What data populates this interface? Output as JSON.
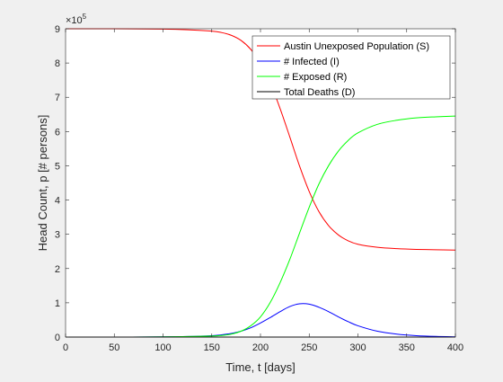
{
  "chart_data": {
    "type": "line",
    "xlabel": "Time, t [days]",
    "ylabel": "Head Count, p [# persons]",
    "exponent_label": "×10",
    "exponent_power": "5",
    "xlim": [
      0,
      400
    ],
    "ylim": [
      0,
      900000
    ],
    "xticks": [
      0,
      50,
      100,
      150,
      200,
      250,
      300,
      350,
      400
    ],
    "xtick_labels": [
      "0",
      "50",
      "100",
      "150",
      "200",
      "250",
      "300",
      "350",
      "400"
    ],
    "yticks": [
      0,
      100000,
      200000,
      300000,
      400000,
      500000,
      600000,
      700000,
      800000,
      900000
    ],
    "ytick_labels": [
      "0",
      "1",
      "2",
      "3",
      "4",
      "5",
      "6",
      "7",
      "8",
      "9"
    ],
    "grid": false,
    "legend_position": "top-right",
    "x": [
      0,
      50,
      100,
      125,
      150,
      160,
      170,
      180,
      190,
      200,
      210,
      220,
      230,
      240,
      250,
      260,
      270,
      280,
      290,
      300,
      320,
      340,
      360,
      380,
      400
    ],
    "series": [
      {
        "name": "Austin Unexposed Population (S)",
        "color": "#ff0000",
        "values": [
          900000,
          900000,
          899000,
          897000,
          893000,
          889000,
          881000,
          866000,
          840000,
          800000,
          742000,
          668000,
          585000,
          500000,
          425000,
          366000,
          325000,
          298000,
          281000,
          271000,
          262000,
          258000,
          256000,
          255000,
          254000
        ]
      },
      {
        "name": "# Infected (I)",
        "color": "#0000ff",
        "values": [
          0,
          0,
          500,
          1500,
          4000,
          6500,
          10500,
          17000,
          27000,
          41000,
          57000,
          74000,
          89000,
          97000,
          96000,
          87000,
          74000,
          59000,
          45000,
          33000,
          17000,
          8500,
          4000,
          1800,
          800
        ]
      },
      {
        "name": "# Exposed (R)",
        "color": "#00ff00",
        "values": [
          0,
          0,
          500,
          1500,
          3000,
          4500,
          8500,
          17000,
          33000,
          59000,
          101000,
          158000,
          226000,
          303000,
          379000,
          447000,
          501000,
          543000,
          574000,
          596000,
          621000,
          633000,
          640000,
          643000,
          645000
        ]
      },
      {
        "name": "Total Deaths (D)",
        "color": "#000000",
        "values": [
          0,
          0,
          0,
          0,
          0,
          0,
          0,
          0,
          0,
          0,
          0,
          0,
          0,
          0,
          0,
          0,
          0,
          0,
          0,
          0,
          0,
          0,
          0,
          0,
          0
        ]
      }
    ]
  }
}
